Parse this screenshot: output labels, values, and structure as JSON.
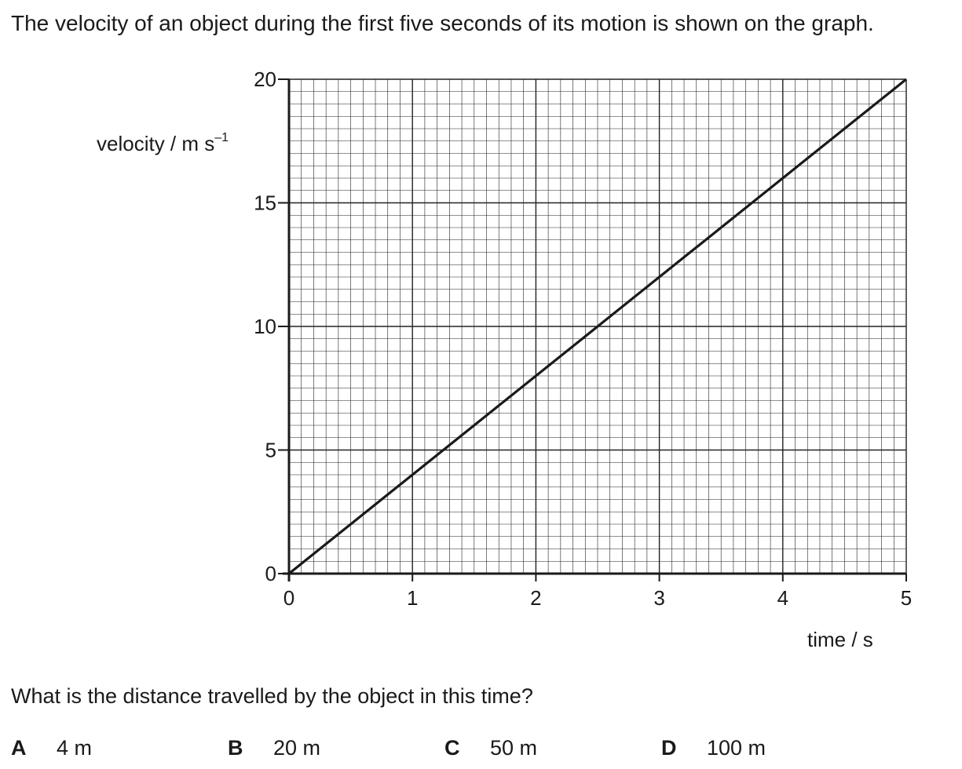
{
  "intro": "The velocity of an object during the first five seconds of its motion is shown on the graph.",
  "chart_data": {
    "type": "line",
    "ylabel": "velocity / m s",
    "ylabel_sup": "–1",
    "xlabel": "time / s",
    "xlim": [
      0,
      5
    ],
    "ylim": [
      0,
      20
    ],
    "xticks": [
      "0",
      "1",
      "2",
      "3",
      "4",
      "5"
    ],
    "yticks": [
      "0",
      "5",
      "10",
      "15",
      "20"
    ],
    "grid": true,
    "series": [
      {
        "x": [
          0,
          5
        ],
        "y": [
          0,
          20
        ]
      }
    ]
  },
  "question": "What is the distance travelled by the object in this time?",
  "options": [
    {
      "letter": "A",
      "text": "4 m"
    },
    {
      "letter": "B",
      "text": "20 m"
    },
    {
      "letter": "C",
      "text": "50 m"
    },
    {
      "letter": "D",
      "text": "100 m"
    }
  ]
}
